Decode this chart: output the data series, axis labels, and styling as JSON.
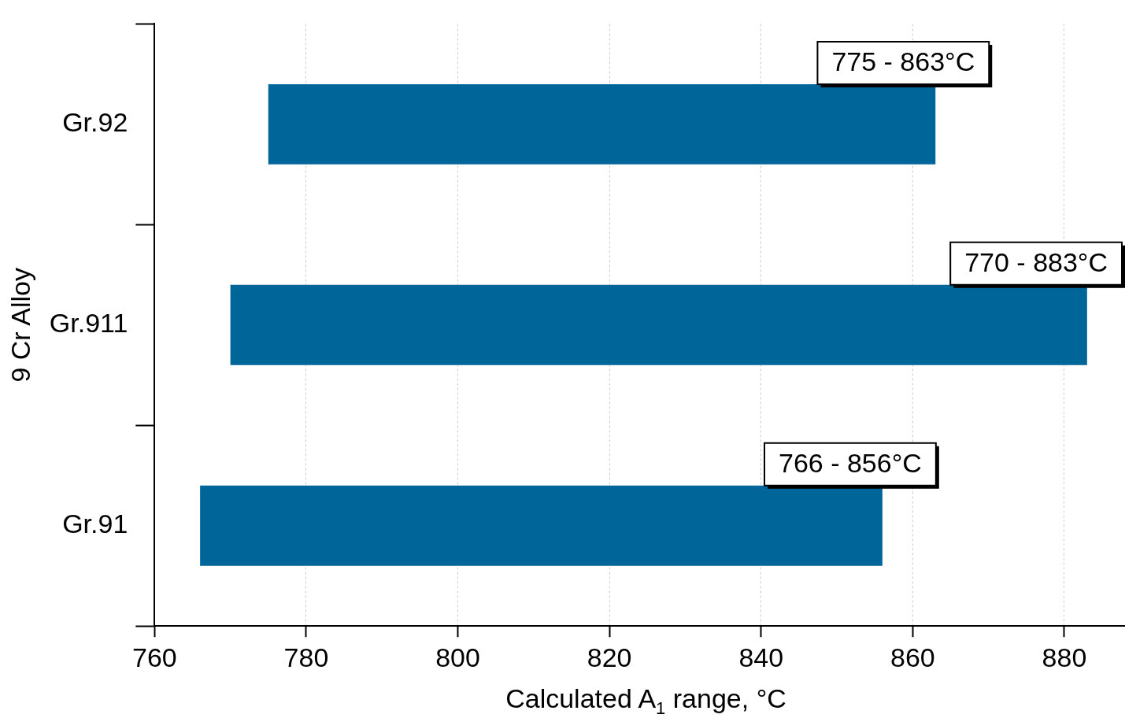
{
  "chart_data": {
    "type": "bar",
    "orientation": "horizontal",
    "xlabel": "Calculated A$_{1}$ range, °C",
    "ylabel": "9 Cr Alloy",
    "categories": [
      "Gr.92",
      "Gr.911",
      "Gr.91"
    ],
    "base": [
      775,
      770,
      766
    ],
    "values": [
      88,
      113,
      90
    ],
    "annotations": [
      {
        "text": "775 - 863°C",
        "x": 863,
        "y": "Gr.92"
      },
      {
        "text": "770 - 883°C",
        "x": 883,
        "y": "Gr.911"
      },
      {
        "text": "766 - 856°C",
        "x": 856,
        "y": "Gr.91"
      }
    ],
    "color": "#00669a",
    "xlim": [
      760,
      888
    ],
    "xticks": [
      760,
      780,
      800,
      820,
      840,
      860,
      880
    ],
    "grid": "x"
  }
}
